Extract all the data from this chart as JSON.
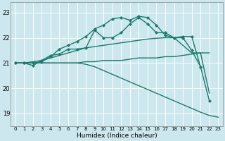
{
  "xlabel": "Humidex (Indice chaleur)",
  "ylabel": "",
  "background_color": "#cce8ee",
  "line_color": "#1a7a6e",
  "grid_color": "#ffffff",
  "xlim": [
    -0.5,
    23.5
  ],
  "ylim": [
    18.5,
    23.4
  ],
  "yticks": [
    19,
    20,
    21,
    22,
    23
  ],
  "xticks": [
    0,
    1,
    2,
    3,
    4,
    5,
    6,
    7,
    8,
    9,
    10,
    11,
    12,
    13,
    14,
    15,
    16,
    17,
    18,
    19,
    20,
    21,
    22,
    23
  ],
  "lines": [
    {
      "x": [
        0,
        1,
        2,
        3,
        4,
        5,
        6,
        7,
        8,
        9,
        10,
        11,
        12,
        13,
        14,
        15,
        16,
        17,
        18,
        19,
        20,
        21,
        22
      ],
      "y": [
        21.0,
        21.0,
        21.0,
        21.05,
        21.25,
        21.55,
        21.7,
        21.85,
        22.05,
        22.35,
        22.5,
        22.75,
        22.8,
        22.7,
        22.85,
        22.8,
        22.5,
        22.1,
        22.0,
        22.05,
        22.05,
        20.85,
        19.5
      ],
      "marker": true,
      "lw": 1.0
    },
    {
      "x": [
        0,
        1,
        2,
        3,
        4,
        5,
        6,
        7,
        8,
        9,
        10,
        11,
        12,
        13,
        14,
        15,
        16,
        17,
        18,
        19,
        20,
        21
      ],
      "y": [
        21.0,
        21.0,
        20.9,
        21.1,
        21.3,
        21.35,
        21.55,
        21.55,
        21.6,
        22.3,
        22.0,
        22.0,
        22.2,
        22.55,
        22.8,
        22.55,
        22.2,
        22.2,
        22.0,
        22.0,
        21.5,
        20.85
      ],
      "marker": true,
      "lw": 1.0
    },
    {
      "x": [
        0,
        1,
        2,
        3,
        4,
        5,
        6,
        7,
        8,
        9,
        10,
        11,
        12,
        13,
        14,
        15,
        16,
        17,
        18,
        19,
        20,
        21,
        22
      ],
      "y": [
        21.0,
        21.0,
        21.05,
        21.1,
        21.2,
        21.3,
        21.4,
        21.5,
        21.6,
        21.65,
        21.7,
        21.75,
        21.8,
        21.85,
        21.9,
        21.95,
        21.98,
        22.0,
        22.0,
        21.7,
        21.4,
        21.4,
        21.4
      ],
      "marker": false,
      "lw": 1.0
    },
    {
      "x": [
        0,
        1,
        2,
        3,
        4,
        5,
        6,
        7,
        8,
        9,
        10,
        11,
        12,
        13,
        14,
        15,
        16,
        17,
        18,
        19,
        20,
        21,
        22
      ],
      "y": [
        21.0,
        21.0,
        21.0,
        21.0,
        21.0,
        21.0,
        21.0,
        21.0,
        21.05,
        21.05,
        21.1,
        21.1,
        21.1,
        21.15,
        21.2,
        21.2,
        21.2,
        21.25,
        21.25,
        21.3,
        21.35,
        21.4,
        19.8
      ],
      "marker": false,
      "lw": 1.0
    },
    {
      "x": [
        0,
        1,
        2,
        3,
        4,
        5,
        6,
        7,
        8,
        9,
        10,
        11,
        12,
        13,
        14,
        15,
        16,
        17,
        18,
        19,
        20,
        21,
        22,
        23
      ],
      "y": [
        21.0,
        21.0,
        21.0,
        21.0,
        21.0,
        21.0,
        21.0,
        21.0,
        20.95,
        20.85,
        20.7,
        20.55,
        20.4,
        20.25,
        20.1,
        19.95,
        19.8,
        19.65,
        19.5,
        19.35,
        19.2,
        19.05,
        18.92,
        18.85
      ],
      "marker": false,
      "lw": 1.0
    }
  ]
}
